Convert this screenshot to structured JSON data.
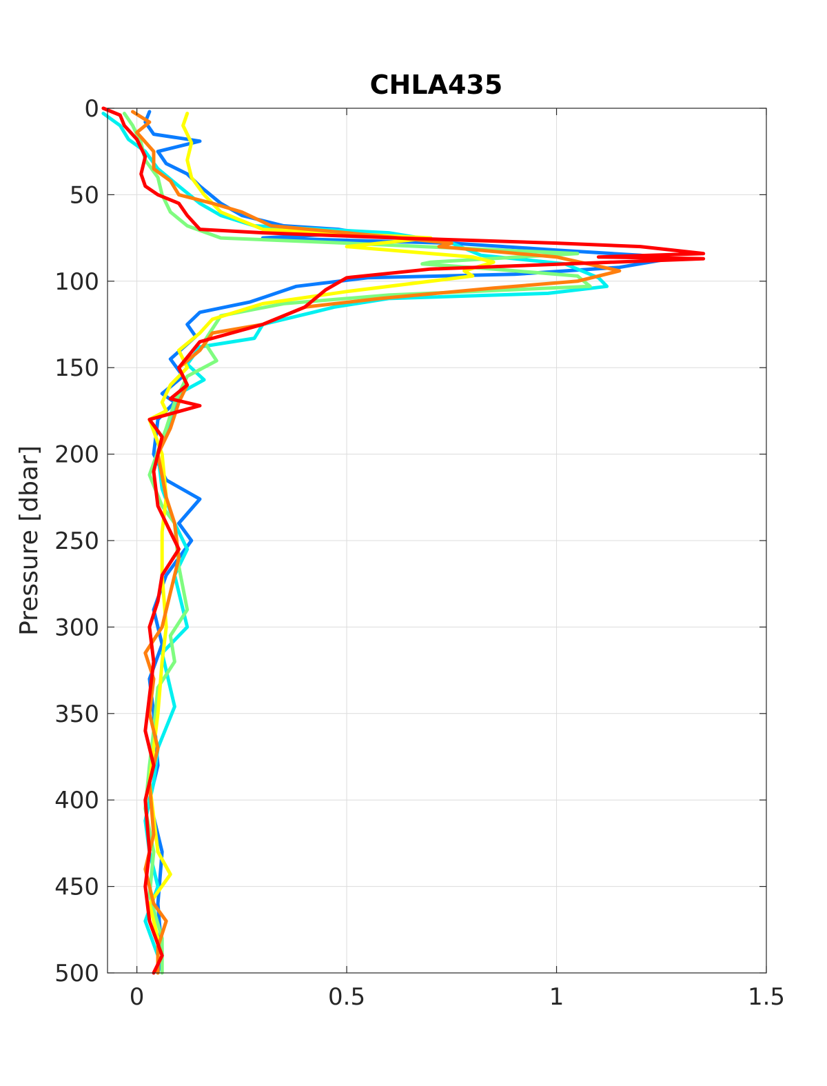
{
  "chart_data": {
    "type": "line",
    "title": "CHLA435",
    "xlabel": "",
    "ylabel": "Pressure [dbar]",
    "xlim": [
      -0.07,
      1.5
    ],
    "ylim": [
      0,
      500
    ],
    "y_reversed": true,
    "grid": true,
    "xticks": [
      0,
      0.5,
      1,
      1.5
    ],
    "yticks": [
      0,
      50,
      100,
      150,
      200,
      250,
      300,
      350,
      400,
      450,
      500
    ],
    "series": [
      {
        "color": "#0a7cff",
        "points": [
          [
            0.03,
            2
          ],
          [
            0.02,
            8
          ],
          [
            0.04,
            15
          ],
          [
            0.15,
            19
          ],
          [
            0.05,
            25
          ],
          [
            0.07,
            32
          ],
          [
            0.12,
            38
          ],
          [
            0.15,
            45
          ],
          [
            0.2,
            55
          ],
          [
            0.25,
            62
          ],
          [
            0.35,
            68
          ],
          [
            0.48,
            70
          ],
          [
            0.53,
            72
          ],
          [
            0.3,
            75
          ],
          [
            0.75,
            78
          ],
          [
            1.0,
            82
          ],
          [
            1.2,
            85
          ],
          [
            1.27,
            87
          ],
          [
            1.15,
            92
          ],
          [
            0.9,
            96
          ],
          [
            0.55,
            98
          ],
          [
            0.38,
            103
          ],
          [
            0.27,
            112
          ],
          [
            0.15,
            118
          ],
          [
            0.12,
            125
          ],
          [
            0.14,
            132
          ],
          [
            0.08,
            145
          ],
          [
            0.11,
            155
          ],
          [
            0.06,
            165
          ],
          [
            0.09,
            170
          ],
          [
            0.05,
            180
          ],
          [
            0.04,
            200
          ],
          [
            0.07,
            215
          ],
          [
            0.15,
            226
          ],
          [
            0.1,
            240
          ],
          [
            0.13,
            250
          ],
          [
            0.07,
            270
          ],
          [
            0.04,
            290
          ],
          [
            0.06,
            310
          ],
          [
            0.03,
            330
          ],
          [
            0.04,
            350
          ],
          [
            0.05,
            380
          ],
          [
            0.03,
            400
          ],
          [
            0.06,
            430
          ],
          [
            0.05,
            460
          ],
          [
            0.06,
            490
          ],
          [
            0.05,
            500
          ]
        ]
      },
      {
        "color": "#00f0f0",
        "points": [
          [
            -0.08,
            3
          ],
          [
            -0.04,
            10
          ],
          [
            -0.02,
            18
          ],
          [
            0.02,
            25
          ],
          [
            0.05,
            35
          ],
          [
            0.1,
            45
          ],
          [
            0.15,
            55
          ],
          [
            0.2,
            62
          ],
          [
            0.28,
            68
          ],
          [
            0.6,
            72
          ],
          [
            0.75,
            78
          ],
          [
            0.82,
            85
          ],
          [
            1.02,
            90
          ],
          [
            1.1,
            98
          ],
          [
            1.12,
            103
          ],
          [
            0.98,
            107
          ],
          [
            0.6,
            110
          ],
          [
            0.47,
            115
          ],
          [
            0.42,
            118
          ],
          [
            0.3,
            125
          ],
          [
            0.28,
            133
          ],
          [
            0.15,
            138
          ],
          [
            0.12,
            148
          ],
          [
            0.16,
            157
          ],
          [
            0.1,
            165
          ],
          [
            0.08,
            180
          ],
          [
            0.05,
            200
          ],
          [
            0.06,
            220
          ],
          [
            0.09,
            240
          ],
          [
            0.12,
            255
          ],
          [
            0.09,
            270
          ],
          [
            0.11,
            290
          ],
          [
            0.12,
            300
          ],
          [
            0.06,
            315
          ],
          [
            0.09,
            346
          ],
          [
            0.05,
            370
          ],
          [
            0.04,
            390
          ],
          [
            0.02,
            412
          ],
          [
            0.03,
            430
          ],
          [
            0.05,
            450
          ],
          [
            0.02,
            470
          ],
          [
            0.05,
            490
          ],
          [
            0.05,
            500
          ]
        ]
      },
      {
        "color": "#7ffc7f",
        "points": [
          [
            -0.03,
            3
          ],
          [
            -0.01,
            10
          ],
          [
            0.01,
            20
          ],
          [
            0.02,
            30
          ],
          [
            0.05,
            40
          ],
          [
            0.06,
            50
          ],
          [
            0.08,
            60
          ],
          [
            0.12,
            68
          ],
          [
            0.2,
            75
          ],
          [
            0.5,
            78
          ],
          [
            1.05,
            84
          ],
          [
            0.7,
            89
          ],
          [
            0.68,
            90
          ],
          [
            0.85,
            93
          ],
          [
            1.05,
            97
          ],
          [
            1.08,
            103
          ],
          [
            0.6,
            108
          ],
          [
            0.35,
            113
          ],
          [
            0.2,
            120
          ],
          [
            0.16,
            135
          ],
          [
            0.19,
            146
          ],
          [
            0.12,
            155
          ],
          [
            0.09,
            170
          ],
          [
            0.07,
            185
          ],
          [
            0.03,
            212
          ],
          [
            0.06,
            230
          ],
          [
            0.09,
            240
          ],
          [
            0.1,
            265
          ],
          [
            0.12,
            290
          ],
          [
            0.08,
            305
          ],
          [
            0.09,
            320
          ],
          [
            0.05,
            335
          ],
          [
            0.04,
            360
          ],
          [
            0.03,
            380
          ],
          [
            0.02,
            405
          ],
          [
            0.04,
            430
          ],
          [
            0.03,
            455
          ],
          [
            0.06,
            480
          ],
          [
            0.06,
            500
          ]
        ]
      },
      {
        "color": "#ffff00",
        "points": [
          [
            0.12,
            3
          ],
          [
            0.11,
            10
          ],
          [
            0.13,
            20
          ],
          [
            0.12,
            30
          ],
          [
            0.13,
            40
          ],
          [
            0.16,
            50
          ],
          [
            0.2,
            60
          ],
          [
            0.3,
            70
          ],
          [
            0.7,
            75
          ],
          [
            0.5,
            80
          ],
          [
            0.8,
            86
          ],
          [
            0.85,
            89
          ],
          [
            0.78,
            94
          ],
          [
            0.8,
            97
          ],
          [
            0.5,
            106
          ],
          [
            0.3,
            113
          ],
          [
            0.18,
            122
          ],
          [
            0.15,
            130
          ],
          [
            0.1,
            140
          ],
          [
            0.12,
            150
          ],
          [
            0.08,
            160
          ],
          [
            0.06,
            170
          ],
          [
            0.07,
            175
          ],
          [
            0.03,
            180
          ],
          [
            0.06,
            200
          ],
          [
            0.07,
            225
          ],
          [
            0.06,
            245
          ],
          [
            0.06,
            270
          ],
          [
            0.07,
            300
          ],
          [
            0.06,
            320
          ],
          [
            0.05,
            350
          ],
          [
            0.04,
            370
          ],
          [
            0.03,
            390
          ],
          [
            0.04,
            410
          ],
          [
            0.05,
            430
          ],
          [
            0.08,
            443
          ],
          [
            0.03,
            460
          ],
          [
            0.05,
            480
          ],
          [
            0.05,
            500
          ]
        ]
      },
      {
        "color": "#ff7f0e",
        "points": [
          [
            -0.01,
            2
          ],
          [
            0.03,
            8
          ],
          [
            0.0,
            14
          ],
          [
            0.04,
            25
          ],
          [
            0.04,
            35
          ],
          [
            0.08,
            42
          ],
          [
            0.1,
            50
          ],
          [
            0.18,
            55
          ],
          [
            0.25,
            60
          ],
          [
            0.32,
            68
          ],
          [
            0.5,
            72
          ],
          [
            0.75,
            78
          ],
          [
            0.72,
            80
          ],
          [
            1.0,
            86
          ],
          [
            1.15,
            94
          ],
          [
            1.05,
            100
          ],
          [
            0.85,
            104
          ],
          [
            0.58,
            110
          ],
          [
            0.4,
            115
          ],
          [
            0.3,
            125
          ],
          [
            0.18,
            130
          ],
          [
            0.15,
            140
          ],
          [
            0.1,
            150
          ],
          [
            0.12,
            160
          ],
          [
            0.1,
            170
          ],
          [
            0.08,
            185
          ],
          [
            0.05,
            200
          ],
          [
            0.07,
            225
          ],
          [
            0.09,
            240
          ],
          [
            0.1,
            260
          ],
          [
            0.08,
            280
          ],
          [
            0.06,
            300
          ],
          [
            0.02,
            315
          ],
          [
            0.04,
            330
          ],
          [
            0.03,
            350
          ],
          [
            0.05,
            370
          ],
          [
            0.03,
            390
          ],
          [
            0.04,
            420
          ],
          [
            0.02,
            440
          ],
          [
            0.04,
            460
          ],
          [
            0.07,
            470
          ],
          [
            0.05,
            485
          ],
          [
            0.05,
            500
          ]
        ]
      },
      {
        "color": "#ff0000",
        "points": [
          [
            -0.08,
            0
          ],
          [
            -0.04,
            4
          ],
          [
            -0.03,
            10
          ],
          [
            0.0,
            18
          ],
          [
            0.02,
            28
          ],
          [
            0.01,
            38
          ],
          [
            0.02,
            45
          ],
          [
            0.05,
            50
          ],
          [
            0.1,
            55
          ],
          [
            0.12,
            62
          ],
          [
            0.15,
            70
          ],
          [
            0.3,
            72
          ],
          [
            0.62,
            75
          ],
          [
            1.0,
            78
          ],
          [
            1.2,
            80
          ],
          [
            1.35,
            84
          ],
          [
            1.1,
            86
          ],
          [
            1.35,
            87
          ],
          [
            0.7,
            93
          ],
          [
            0.5,
            98
          ],
          [
            0.45,
            105
          ],
          [
            0.4,
            115
          ],
          [
            0.3,
            125
          ],
          [
            0.15,
            135
          ],
          [
            0.1,
            150
          ],
          [
            0.12,
            160
          ],
          [
            0.08,
            168
          ],
          [
            0.15,
            172
          ],
          [
            0.03,
            180
          ],
          [
            0.06,
            190
          ],
          [
            0.04,
            210
          ],
          [
            0.05,
            230
          ],
          [
            0.08,
            245
          ],
          [
            0.1,
            255
          ],
          [
            0.06,
            270
          ],
          [
            0.05,
            285
          ],
          [
            0.03,
            300
          ],
          [
            0.04,
            320
          ],
          [
            0.03,
            340
          ],
          [
            0.02,
            360
          ],
          [
            0.04,
            380
          ],
          [
            0.02,
            400
          ],
          [
            0.03,
            430
          ],
          [
            0.02,
            450
          ],
          [
            0.03,
            470
          ],
          [
            0.06,
            490
          ],
          [
            0.04,
            500
          ]
        ]
      }
    ]
  }
}
